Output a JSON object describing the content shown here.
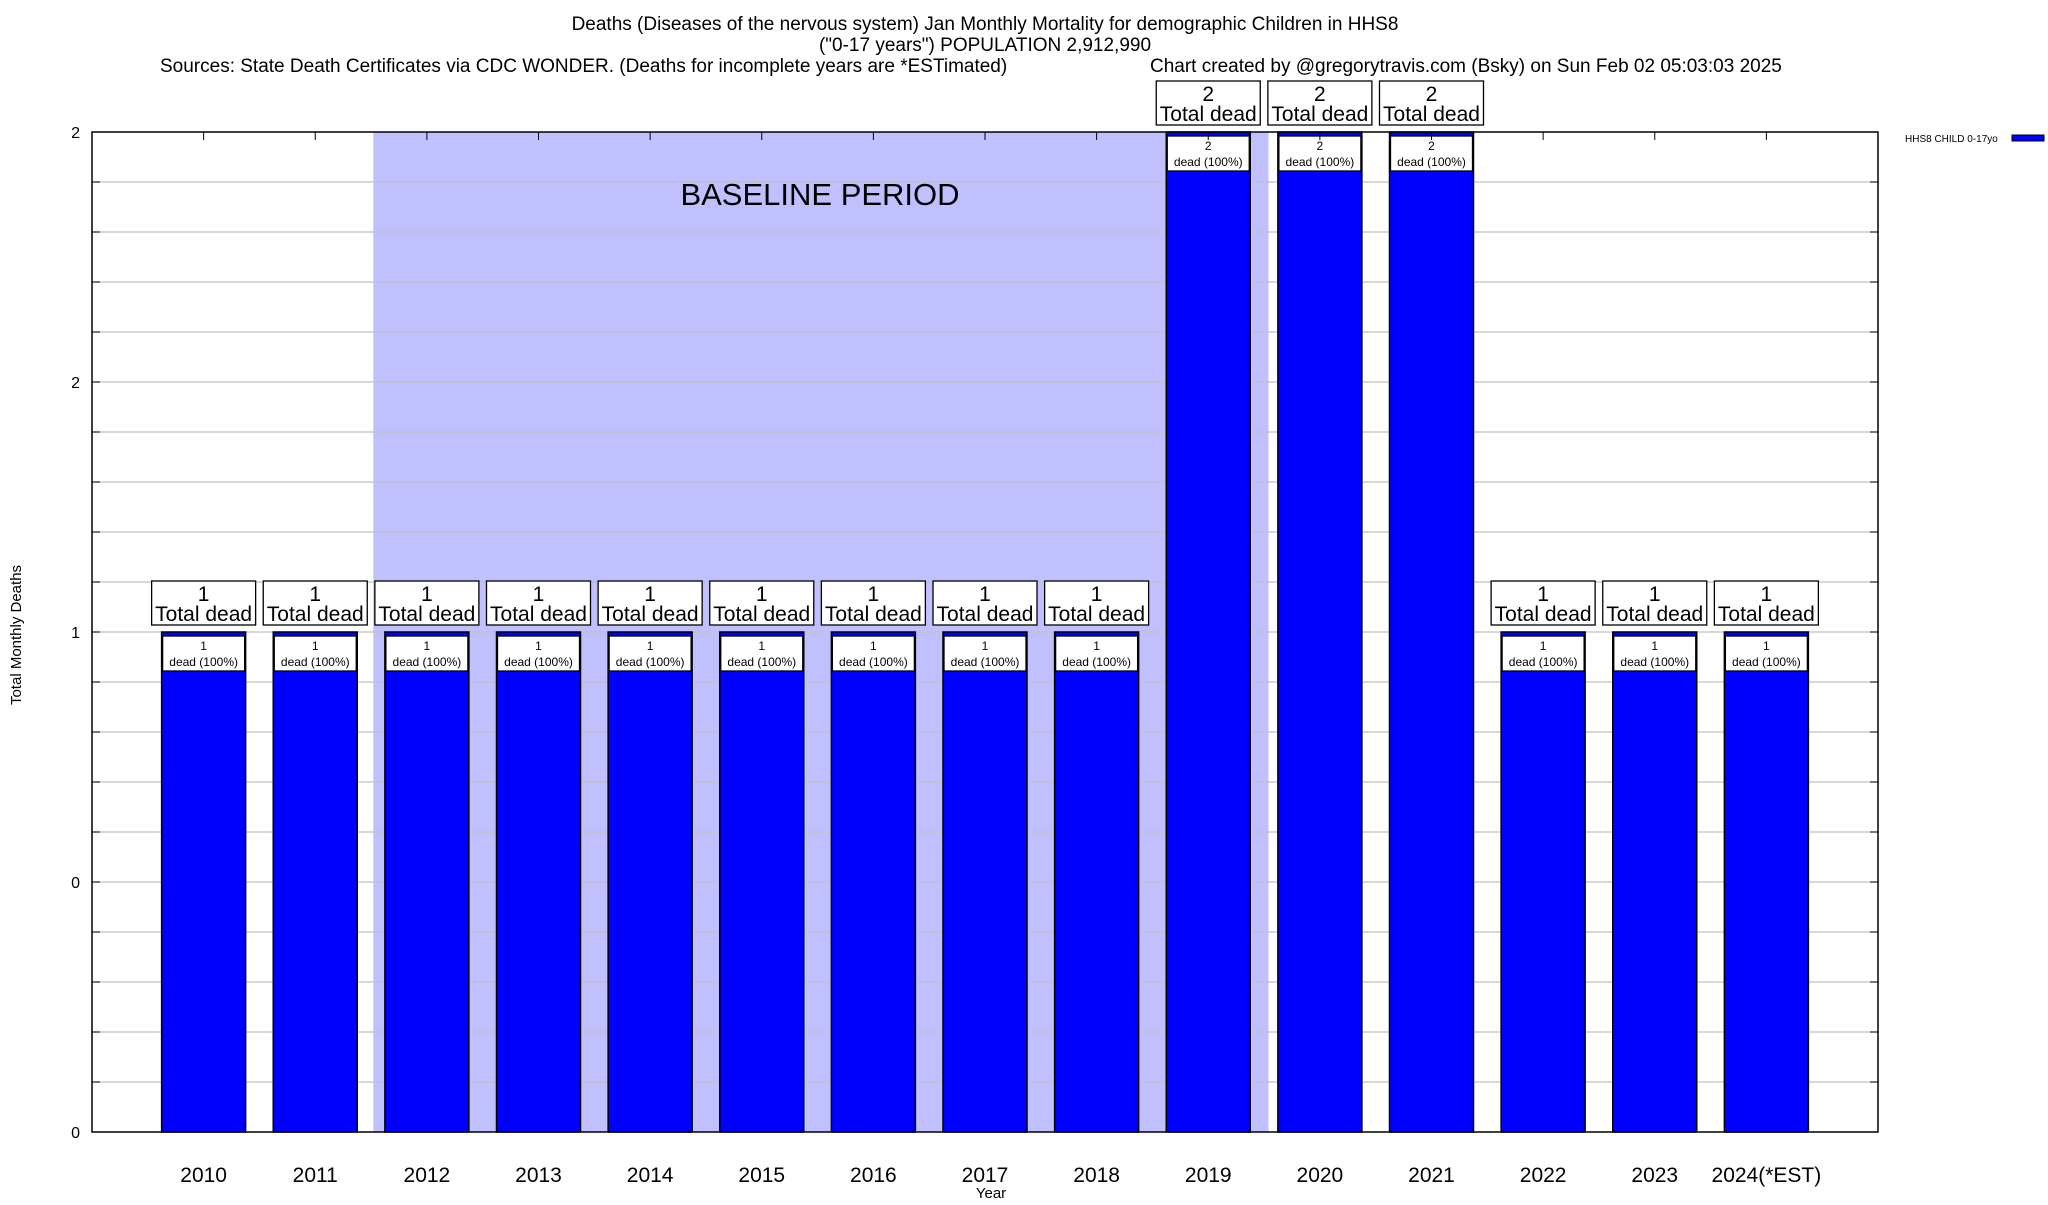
{
  "chart_data": {
    "type": "bar",
    "title": "Deaths (Diseases of the nervous system) Jan Monthly Mortality for demographic Children in HHS8",
    "subtitle": "(\"0-17 years\") POPULATION 2,912,990",
    "sources": "Sources: State Death Certificates via CDC WONDER. (Deaths for incomplete years are *ESTimated)",
    "credit": "Chart created by @gregorytravis.com (Bsky) on Sun Feb 02 05:03:03 2025",
    "xlabel": "Year",
    "ylabel": "Total Monthly Deaths",
    "ylim": [
      0,
      2
    ],
    "yticks": [
      {
        "value": 0,
        "label": "0"
      },
      {
        "value": 0.5,
        "label": "0"
      },
      {
        "value": 1,
        "label": "1"
      },
      {
        "value": 1.5,
        "label": "2"
      },
      {
        "value": 2,
        "label": "2"
      }
    ],
    "grid": true,
    "grid_step": 0.1,
    "legend": {
      "position": "top-right",
      "entries": [
        {
          "name": "HHS8 CHILD 0-17yo",
          "color": "#0000ff"
        }
      ]
    },
    "baseline": {
      "label": "BASELINE PERIOD",
      "from_index": 1.52,
      "to_index": 9.54,
      "color": "#c0c0ff"
    },
    "categories": [
      "2010",
      "2011",
      "2012",
      "2013",
      "2014",
      "2015",
      "2016",
      "2017",
      "2018",
      "2019",
      "2020",
      "2021",
      "2022",
      "2023",
      "2024(*EST)"
    ],
    "series": [
      {
        "name": "HHS8 CHILD 0-17yo",
        "color": "#0000ff",
        "values": [
          1,
          1,
          1,
          1,
          1,
          1,
          1,
          1,
          1,
          2,
          2,
          2,
          1,
          1,
          1
        ]
      }
    ],
    "total_label": "Total dead",
    "inner_label": "dead (100%)"
  }
}
